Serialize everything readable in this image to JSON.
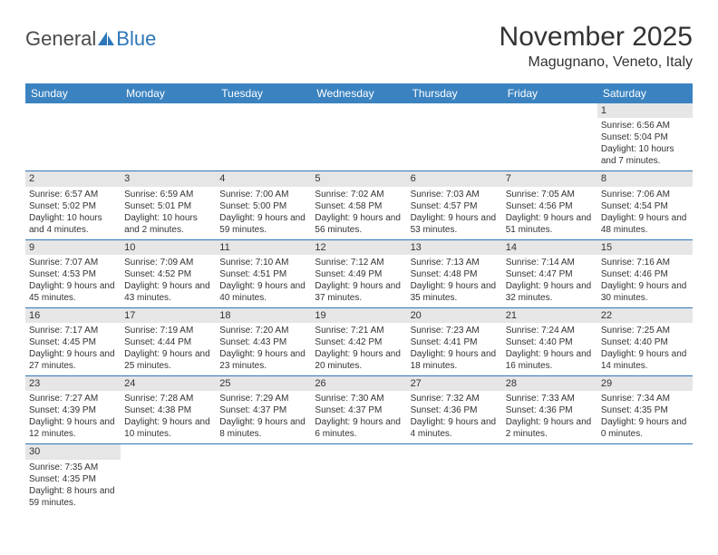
{
  "logo": {
    "text_general": "General",
    "text_blue": "Blue",
    "sail_color": "#2e77b8",
    "general_color": "#4a4a4a"
  },
  "header": {
    "month_title": "November 2025",
    "location": "Magugnano, Veneto, Italy"
  },
  "colors": {
    "header_bg": "#3b83c0",
    "header_text": "#ffffff",
    "daynum_bg": "#e6e6e6",
    "row_border": "#2e77b8",
    "body_text": "#333333",
    "page_bg": "#ffffff"
  },
  "weekdays": [
    "Sunday",
    "Monday",
    "Tuesday",
    "Wednesday",
    "Thursday",
    "Friday",
    "Saturday"
  ],
  "weeks": [
    [
      null,
      null,
      null,
      null,
      null,
      null,
      {
        "n": "1",
        "sr": "6:56 AM",
        "ss": "5:04 PM",
        "dl": "10 hours and 7 minutes."
      }
    ],
    [
      {
        "n": "2",
        "sr": "6:57 AM",
        "ss": "5:02 PM",
        "dl": "10 hours and 4 minutes."
      },
      {
        "n": "3",
        "sr": "6:59 AM",
        "ss": "5:01 PM",
        "dl": "10 hours and 2 minutes."
      },
      {
        "n": "4",
        "sr": "7:00 AM",
        "ss": "5:00 PM",
        "dl": "9 hours and 59 minutes."
      },
      {
        "n": "5",
        "sr": "7:02 AM",
        "ss": "4:58 PM",
        "dl": "9 hours and 56 minutes."
      },
      {
        "n": "6",
        "sr": "7:03 AM",
        "ss": "4:57 PM",
        "dl": "9 hours and 53 minutes."
      },
      {
        "n": "7",
        "sr": "7:05 AM",
        "ss": "4:56 PM",
        "dl": "9 hours and 51 minutes."
      },
      {
        "n": "8",
        "sr": "7:06 AM",
        "ss": "4:54 PM",
        "dl": "9 hours and 48 minutes."
      }
    ],
    [
      {
        "n": "9",
        "sr": "7:07 AM",
        "ss": "4:53 PM",
        "dl": "9 hours and 45 minutes."
      },
      {
        "n": "10",
        "sr": "7:09 AM",
        "ss": "4:52 PM",
        "dl": "9 hours and 43 minutes."
      },
      {
        "n": "11",
        "sr": "7:10 AM",
        "ss": "4:51 PM",
        "dl": "9 hours and 40 minutes."
      },
      {
        "n": "12",
        "sr": "7:12 AM",
        "ss": "4:49 PM",
        "dl": "9 hours and 37 minutes."
      },
      {
        "n": "13",
        "sr": "7:13 AM",
        "ss": "4:48 PM",
        "dl": "9 hours and 35 minutes."
      },
      {
        "n": "14",
        "sr": "7:14 AM",
        "ss": "4:47 PM",
        "dl": "9 hours and 32 minutes."
      },
      {
        "n": "15",
        "sr": "7:16 AM",
        "ss": "4:46 PM",
        "dl": "9 hours and 30 minutes."
      }
    ],
    [
      {
        "n": "16",
        "sr": "7:17 AM",
        "ss": "4:45 PM",
        "dl": "9 hours and 27 minutes."
      },
      {
        "n": "17",
        "sr": "7:19 AM",
        "ss": "4:44 PM",
        "dl": "9 hours and 25 minutes."
      },
      {
        "n": "18",
        "sr": "7:20 AM",
        "ss": "4:43 PM",
        "dl": "9 hours and 23 minutes."
      },
      {
        "n": "19",
        "sr": "7:21 AM",
        "ss": "4:42 PM",
        "dl": "9 hours and 20 minutes."
      },
      {
        "n": "20",
        "sr": "7:23 AM",
        "ss": "4:41 PM",
        "dl": "9 hours and 18 minutes."
      },
      {
        "n": "21",
        "sr": "7:24 AM",
        "ss": "4:40 PM",
        "dl": "9 hours and 16 minutes."
      },
      {
        "n": "22",
        "sr": "7:25 AM",
        "ss": "4:40 PM",
        "dl": "9 hours and 14 minutes."
      }
    ],
    [
      {
        "n": "23",
        "sr": "7:27 AM",
        "ss": "4:39 PM",
        "dl": "9 hours and 12 minutes."
      },
      {
        "n": "24",
        "sr": "7:28 AM",
        "ss": "4:38 PM",
        "dl": "9 hours and 10 minutes."
      },
      {
        "n": "25",
        "sr": "7:29 AM",
        "ss": "4:37 PM",
        "dl": "9 hours and 8 minutes."
      },
      {
        "n": "26",
        "sr": "7:30 AM",
        "ss": "4:37 PM",
        "dl": "9 hours and 6 minutes."
      },
      {
        "n": "27",
        "sr": "7:32 AM",
        "ss": "4:36 PM",
        "dl": "9 hours and 4 minutes."
      },
      {
        "n": "28",
        "sr": "7:33 AM",
        "ss": "4:36 PM",
        "dl": "9 hours and 2 minutes."
      },
      {
        "n": "29",
        "sr": "7:34 AM",
        "ss": "4:35 PM",
        "dl": "9 hours and 0 minutes."
      }
    ],
    [
      {
        "n": "30",
        "sr": "7:35 AM",
        "ss": "4:35 PM",
        "dl": "8 hours and 59 minutes."
      },
      null,
      null,
      null,
      null,
      null,
      null
    ]
  ],
  "labels": {
    "sunrise": "Sunrise:",
    "sunset": "Sunset:",
    "daylight": "Daylight:"
  }
}
